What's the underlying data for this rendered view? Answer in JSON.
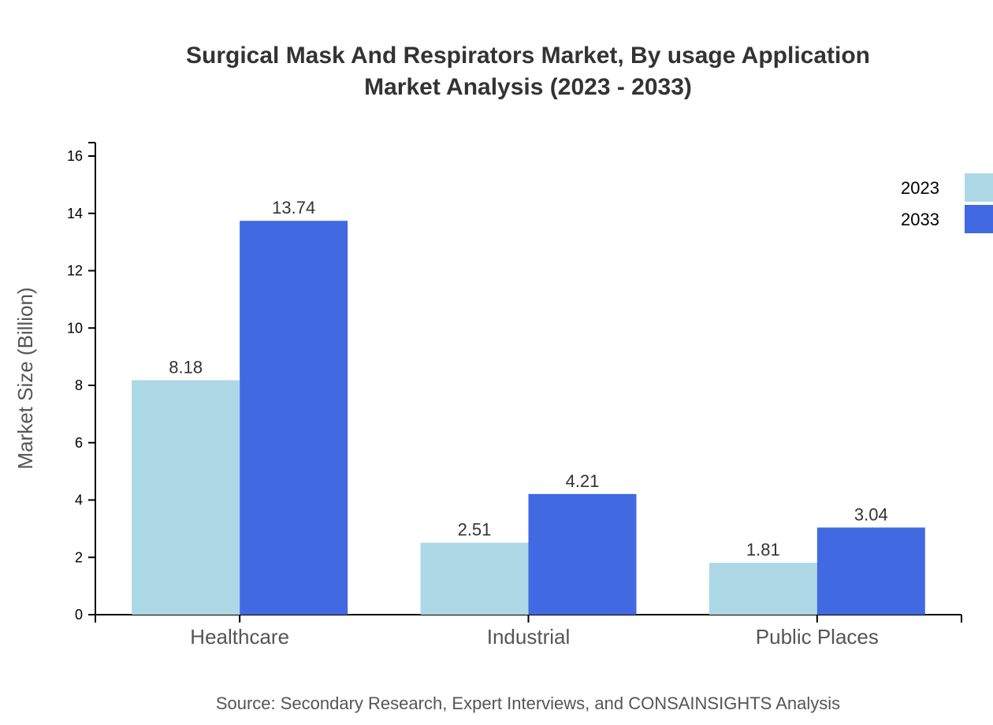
{
  "chart_data": {
    "type": "bar",
    "title": "Surgical Mask And Respirators Market, By usage Application",
    "subtitle": "Market Analysis (2023 - 2033)",
    "xlabel": "",
    "ylabel": "Market Size (Billion)",
    "ylim": [
      0,
      16
    ],
    "yticks": [
      0,
      2,
      4,
      6,
      8,
      10,
      12,
      14,
      16
    ],
    "categories": [
      "Healthcare",
      "Industrial",
      "Public Places"
    ],
    "series": [
      {
        "name": "2023",
        "color": "#add8e6",
        "values": [
          8.18,
          2.51,
          1.81
        ]
      },
      {
        "name": "2033",
        "color": "#4169e1",
        "values": [
          13.74,
          4.21,
          3.04
        ]
      }
    ],
    "grid": false,
    "legend": "top-right",
    "source": "Source: Secondary Research, Expert Interviews, and CONSAINSIGHTS Analysis"
  }
}
